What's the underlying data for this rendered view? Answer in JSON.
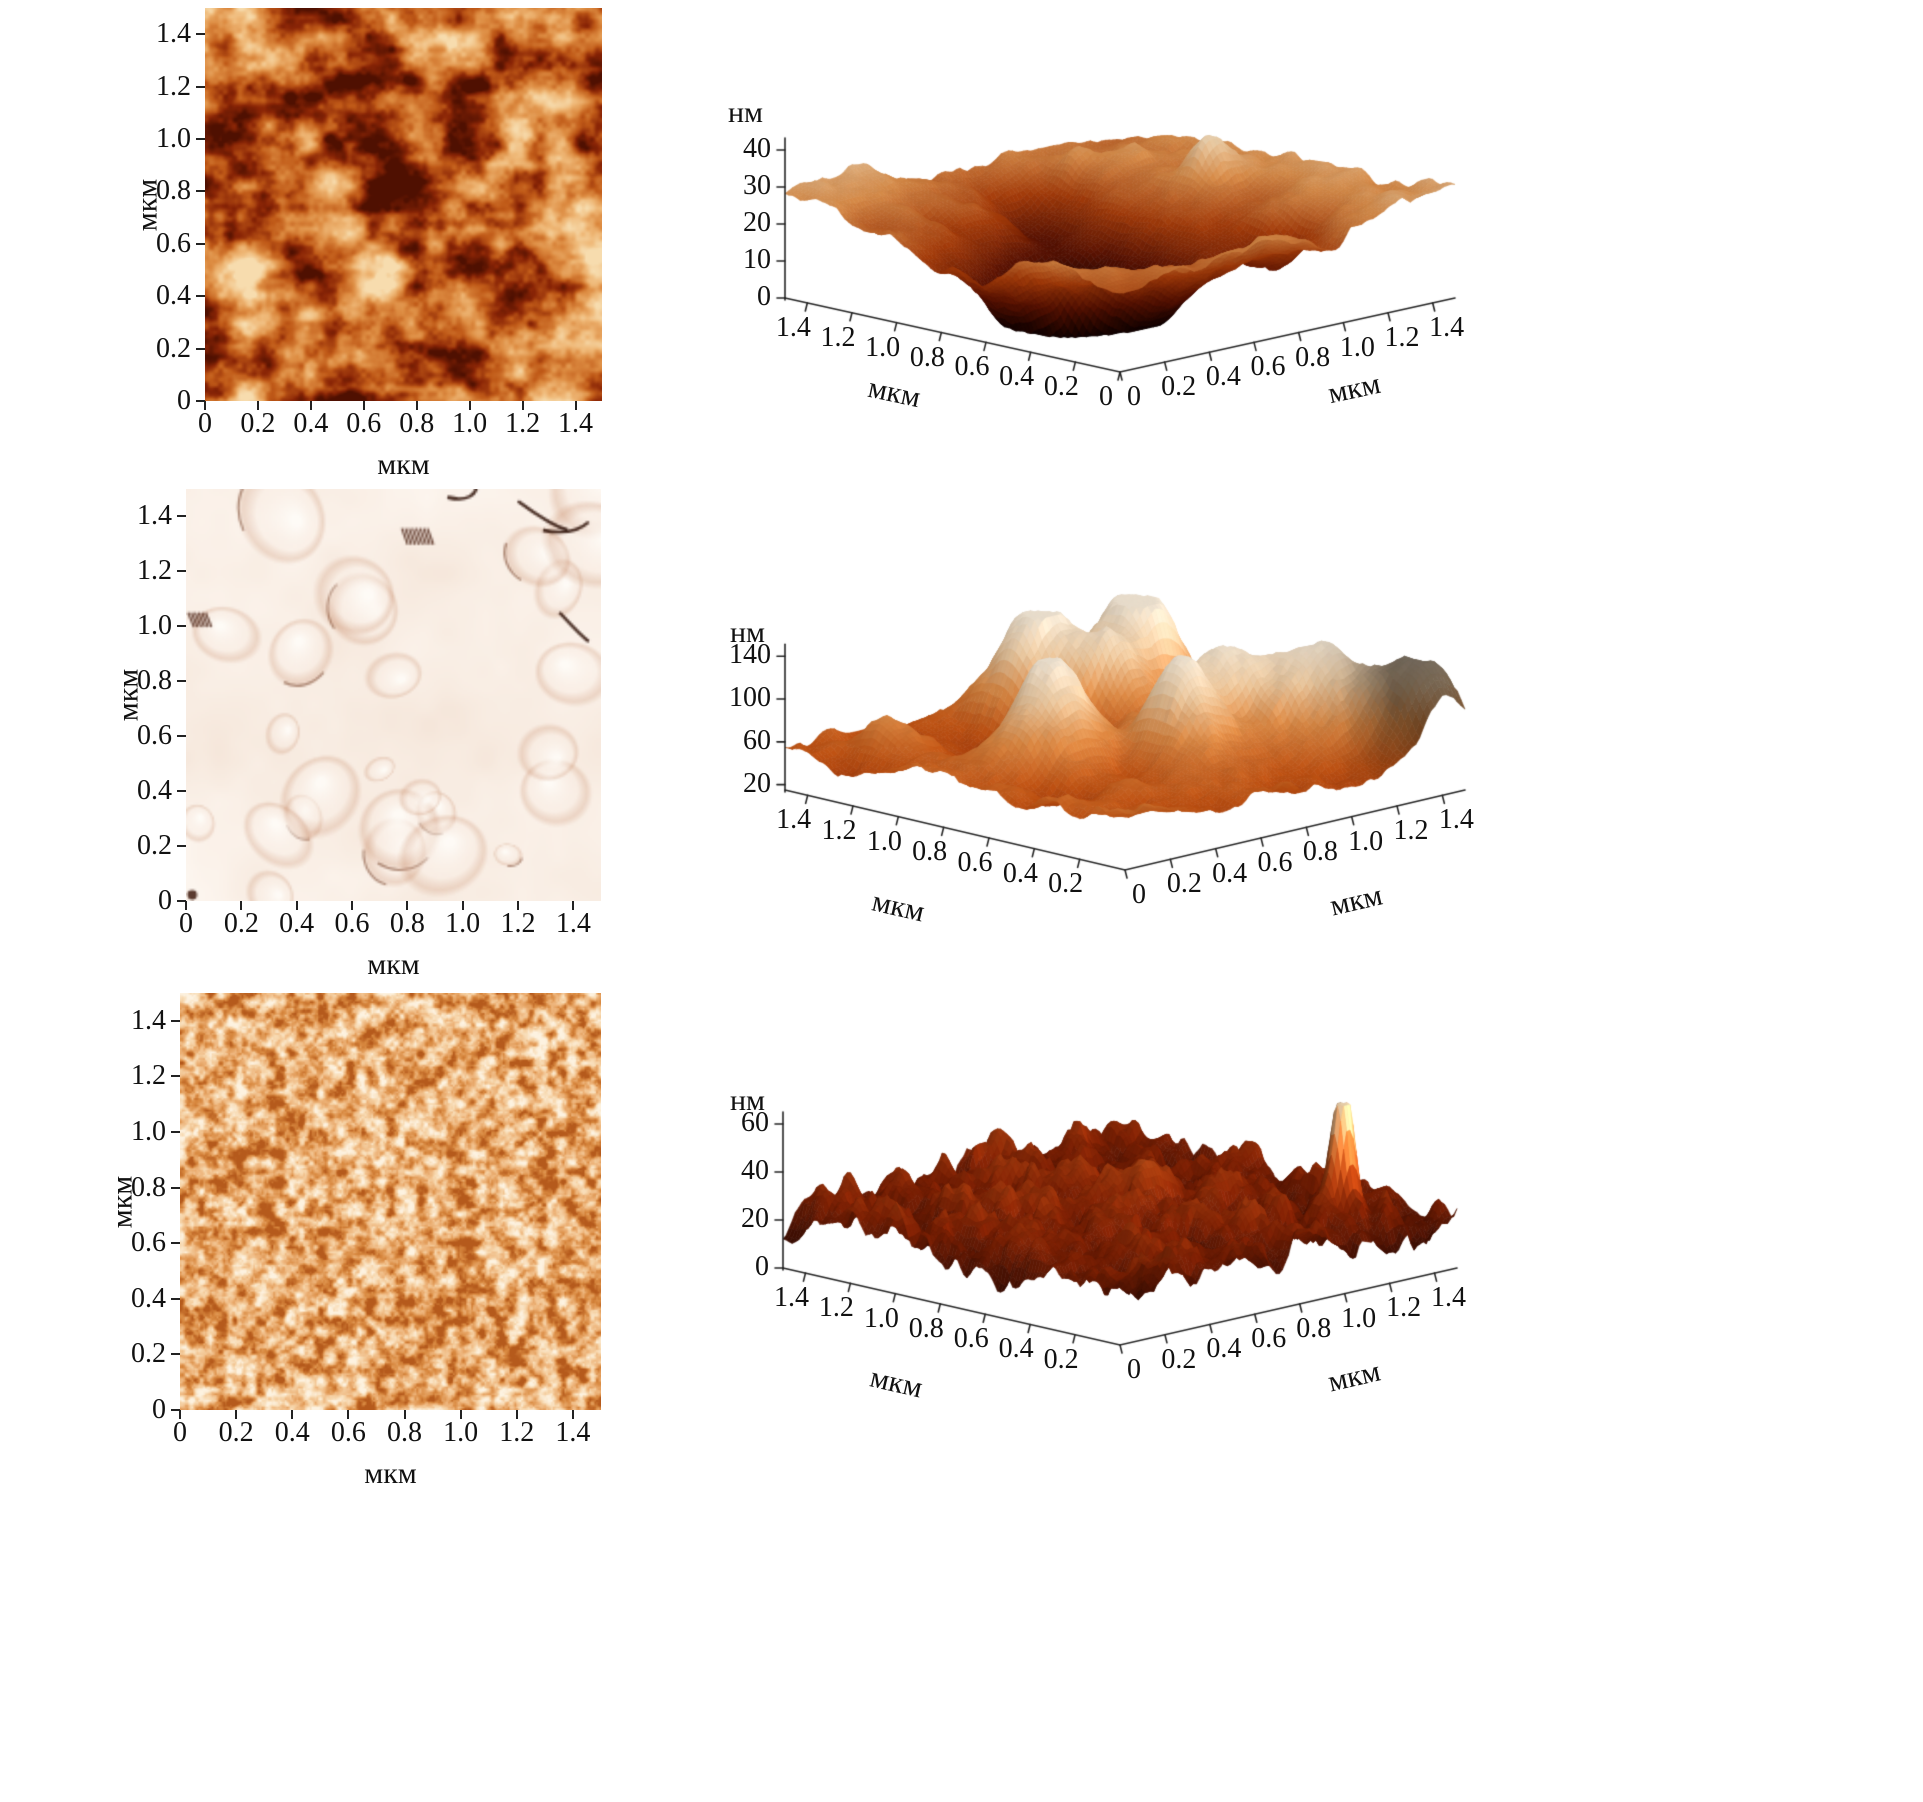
{
  "figure": {
    "layout": "3 rows x 2 columns",
    "left_column": "2D AFM topography maps",
    "right_column": "3D AFM surface relief plots"
  },
  "chart_data": [
    {
      "id": "afm-2d-row1",
      "type": "heatmap",
      "xlabel": "мкм",
      "ylabel": "мкм",
      "xlim": [
        0,
        1.5
      ],
      "ylim": [
        0,
        1.5
      ],
      "x_ticks": [
        "0",
        "0.2",
        "0.4",
        "0.6",
        "0.8",
        "1.0",
        "1.2",
        "1.4"
      ],
      "y_ticks": [
        "0",
        "0.2",
        "0.4",
        "0.6",
        "0.8",
        "1.0",
        "1.2",
        "1.4"
      ],
      "description": "mottled orange surface with dark reddish-brown pits and lighter ridges",
      "palette": [
        "#4f1001",
        "#8a2506",
        "#c05a18",
        "#dd8c42",
        "#efb877",
        "#f7dcae"
      ]
    },
    {
      "id": "afm-3d-row1",
      "type": "surface",
      "xlabel": "мкм",
      "ylabel": "мкм",
      "zlabel": "нм",
      "xlim": [
        0,
        1.5
      ],
      "ylim": [
        0,
        1.5
      ],
      "zlim": [
        0,
        45
      ],
      "z_ticks": [
        "0",
        "10",
        "20",
        "30",
        "40"
      ],
      "left_axis_ticks": [
        "1.4",
        "1.2",
        "1.0",
        "0.8",
        "0.6",
        "0.4",
        "0.2",
        "0"
      ],
      "right_axis_ticks": [
        "0",
        "0.2",
        "0.4",
        "0.6",
        "0.8",
        "1.0",
        "1.2",
        "1.4"
      ],
      "description": "plateau near 30 нм with a deep central pit reaching 0 нм; cream tops, dark red pit",
      "palette": [
        "#0e0100",
        "#5a1202",
        "#a63c0a",
        "#d98d4a",
        "#ecd2ae",
        "#f7efe2"
      ]
    },
    {
      "id": "afm-2d-row2",
      "type": "heatmap",
      "xlabel": "мкм",
      "ylabel": "мкм",
      "xlim": [
        0,
        1.5
      ],
      "ylim": [
        0,
        1.5
      ],
      "x_ticks": [
        "0",
        "0.2",
        "0.4",
        "0.6",
        "0.8",
        "1.0",
        "1.2",
        "1.4"
      ],
      "y_ticks": [
        "0",
        "0.2",
        "0.4",
        "0.6",
        "0.8",
        "1.0",
        "1.2",
        "1.4"
      ],
      "description": "smooth pale pink film with large rounded grains and a few dark cracks",
      "palette": [
        "#e3c4ae",
        "#f0dcce",
        "#f7eadf",
        "#fbf2ea",
        "#fffdf9"
      ]
    },
    {
      "id": "afm-3d-row2",
      "type": "surface",
      "xlabel": "мкм",
      "ylabel": "мкм",
      "zlabel": "нм",
      "xlim": [
        0,
        1.5
      ],
      "ylim": [
        0,
        1.5
      ],
      "zlim": [
        20,
        150
      ],
      "z_ticks": [
        "20",
        "60",
        "100",
        "140"
      ],
      "left_axis_ticks": [
        "1.4",
        "1.2",
        "1.0",
        "0.8",
        "0.6",
        "0.4",
        "0.2"
      ],
      "right_axis_ticks": [
        "0",
        "0.2",
        "0.4",
        "0.6",
        "0.8",
        "1.0",
        "1.2",
        "1.4"
      ],
      "description": "many rounded grain peaks 60-150 нм, cream tops over orange-red valleys, dark mound at right corner",
      "palette": [
        "#8f2a06",
        "#c25313",
        "#dd8a45",
        "#ecc9a0",
        "#f4e8d6"
      ]
    },
    {
      "id": "afm-2d-row3",
      "type": "heatmap",
      "xlabel": "мкм",
      "ylabel": "мкм",
      "xlim": [
        0,
        1.5
      ],
      "ylim": [
        0,
        1.5
      ],
      "x_ticks": [
        "0",
        "0.2",
        "0.4",
        "0.6",
        "0.8",
        "1.0",
        "1.2",
        "1.4"
      ],
      "y_ticks": [
        "0",
        "0.2",
        "0.4",
        "0.6",
        "0.8",
        "1.0",
        "1.2",
        "1.4"
      ],
      "description": "fine granular light-orange texture of densely packed small grains",
      "palette": [
        "#b55a1c",
        "#d8883f",
        "#edb379",
        "#f7d7ad",
        "#fdf2e0"
      ]
    },
    {
      "id": "afm-3d-row3",
      "type": "surface",
      "xlabel": "мкм",
      "ylabel": "мкм",
      "zlabel": "нм",
      "xlim": [
        0,
        1.5
      ],
      "ylim": [
        0,
        1.5
      ],
      "zlim": [
        0,
        70
      ],
      "z_ticks": [
        "0",
        "20",
        "40",
        "60"
      ],
      "left_axis_ticks": [
        "1.4",
        "1.2",
        "1.0",
        "0.8",
        "0.6",
        "0.4",
        "0.2"
      ],
      "right_axis_ticks": [
        "0",
        "0.2",
        "0.4",
        "0.6",
        "0.8",
        "1.0",
        "1.2",
        "1.4"
      ],
      "description": "fine spiky dark red-brown relief around 20-40 нм with a single tall light spike near 60 нм at the right",
      "palette": [
        "#160200",
        "#451003",
        "#7c2105",
        "#a63e10",
        "#d8803f",
        "#f3d7b0"
      ]
    }
  ]
}
